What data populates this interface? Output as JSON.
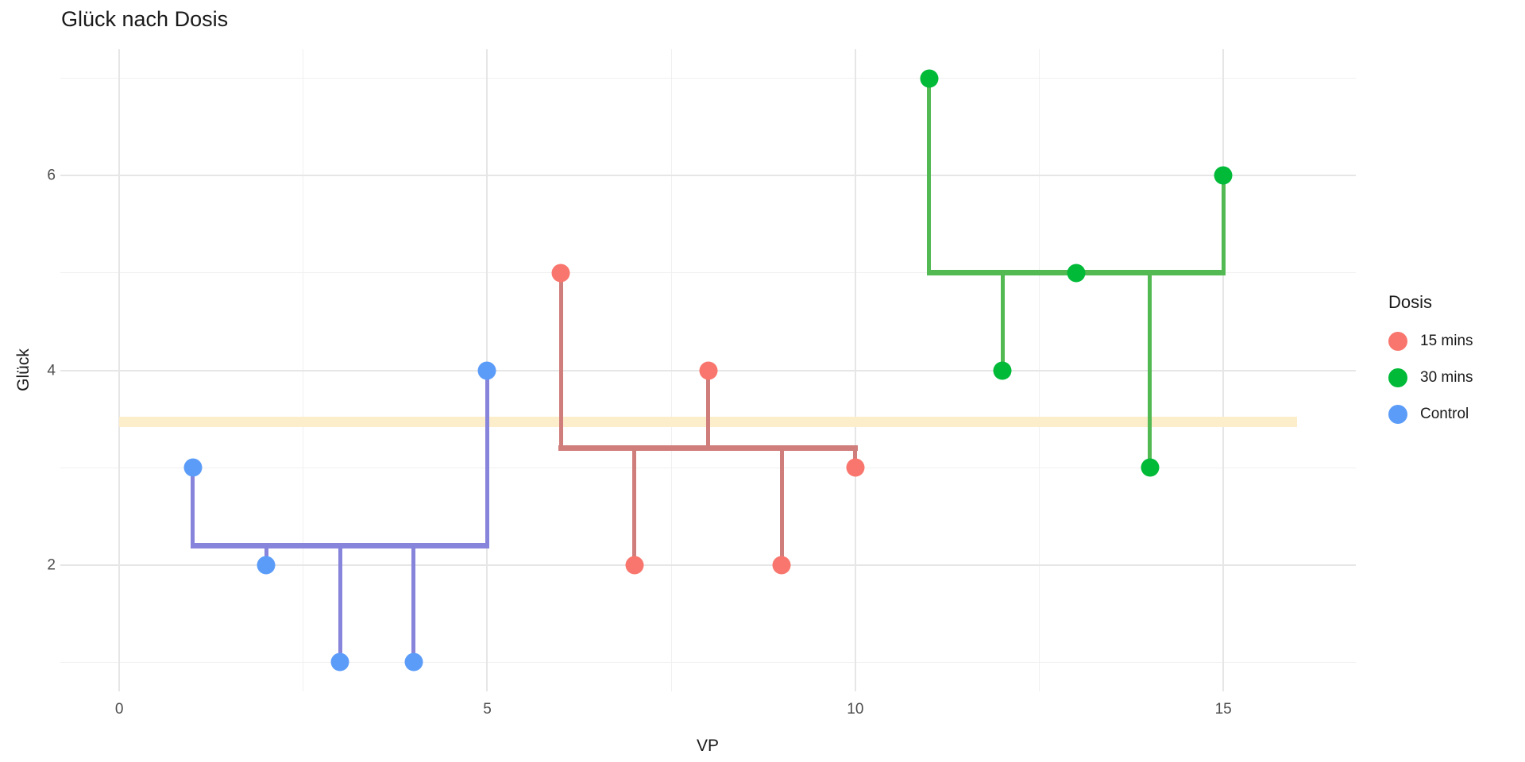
{
  "title": "Glück nach Dosis",
  "axes": {
    "x_title": "VP",
    "y_title": "Glück"
  },
  "legend": {
    "title": "Dosis",
    "entries": [
      {
        "label": "15 mins",
        "color": "#F8766D"
      },
      {
        "label": "30 mins",
        "color": "#00BA38"
      },
      {
        "label": "Control",
        "color": "#5C9CF9"
      }
    ]
  },
  "colors": {
    "background": "#FFFFFF",
    "grid_major": "#E6E6E6",
    "grid_minor": "#F0F0F0",
    "grand_mean_band": "#FCEDCB",
    "title_text": "#1A1A1A",
    "tick_text": "#4D4D4D"
  },
  "chart_data": {
    "type": "scatter",
    "title": "Glück nach Dosis",
    "xlabel": "VP",
    "ylabel": "Glück",
    "xlim": [
      -0.8,
      16.8
    ],
    "ylim": [
      0.7,
      7.3
    ],
    "x_major_ticks": [
      0,
      5,
      10,
      15
    ],
    "x_minor_gridlines": [
      2.5,
      7.5,
      12.5
    ],
    "y_major_ticks": [
      2,
      4,
      6
    ],
    "y_minor_gridlines": [
      1,
      3,
      5,
      7
    ],
    "grid": true,
    "legend_position": "right",
    "grand_mean": {
      "value": 3.4667,
      "x_start": 0,
      "x_end": 16,
      "color": "#FCEDCB",
      "thickness": 13
    },
    "series": [
      {
        "name": "Control",
        "point_color": "#5C9CF9",
        "line_color": "#8784DB",
        "group_mean": 2.2,
        "points": [
          {
            "x": 1,
            "y": 3
          },
          {
            "x": 2,
            "y": 2
          },
          {
            "x": 3,
            "y": 1
          },
          {
            "x": 4,
            "y": 1
          },
          {
            "x": 5,
            "y": 4
          }
        ]
      },
      {
        "name": "15 mins",
        "point_color": "#F8766D",
        "line_color": "#D07E7B",
        "group_mean": 3.2,
        "points": [
          {
            "x": 6,
            "y": 5
          },
          {
            "x": 7,
            "y": 2
          },
          {
            "x": 8,
            "y": 4
          },
          {
            "x": 9,
            "y": 2
          },
          {
            "x": 10,
            "y": 3
          }
        ]
      },
      {
        "name": "30 mins",
        "point_color": "#00BA38",
        "line_color": "#53B953",
        "group_mean": 5.0,
        "points": [
          {
            "x": 11,
            "y": 7
          },
          {
            "x": 12,
            "y": 4
          },
          {
            "x": 13,
            "y": 5
          },
          {
            "x": 14,
            "y": 3
          },
          {
            "x": 15,
            "y": 6
          }
        ]
      }
    ]
  }
}
